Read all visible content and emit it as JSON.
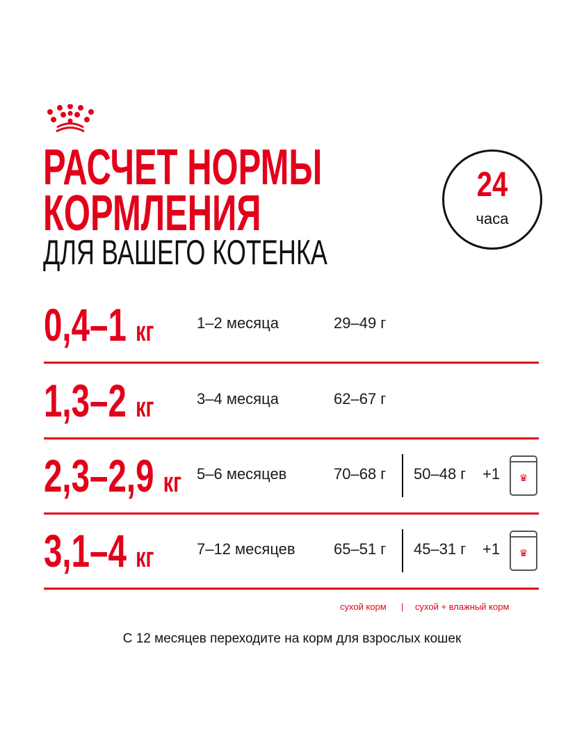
{
  "brand": {
    "logo": "crown-logo",
    "color": "#e2001a"
  },
  "title": {
    "line1": "РАСЧЕТ НОРМЫ",
    "line2": "КОРМЛЕНИЯ",
    "line3": "ДЛЯ ВАШЕГО КОТЕНКА"
  },
  "badge": {
    "number": "24",
    "unit": "часа"
  },
  "rows": [
    {
      "weight": "0,4–1",
      "unit": "кг",
      "age": "1–2 месяца",
      "dry": "29–49 г"
    },
    {
      "weight": "1,3–2",
      "unit": "кг",
      "age": "3–4 месяца",
      "dry": "62–67 г"
    },
    {
      "weight": "2,3–2,9",
      "unit": "кг",
      "age": "5–6 месяцев",
      "dry": "70–68 г",
      "mixed": "50–48 г",
      "plus": "+1"
    },
    {
      "weight": "3,1–4",
      "unit": "кг",
      "age": "7–12 месяцев",
      "dry": "65–51 г",
      "mixed": "45–31 г",
      "plus": "+1"
    }
  ],
  "legend": {
    "dry": "сухой корм",
    "sep": "|",
    "mixed": "сухой + влажный корм"
  },
  "footer": "С 12 месяцев переходите на корм для взрослых кошек"
}
